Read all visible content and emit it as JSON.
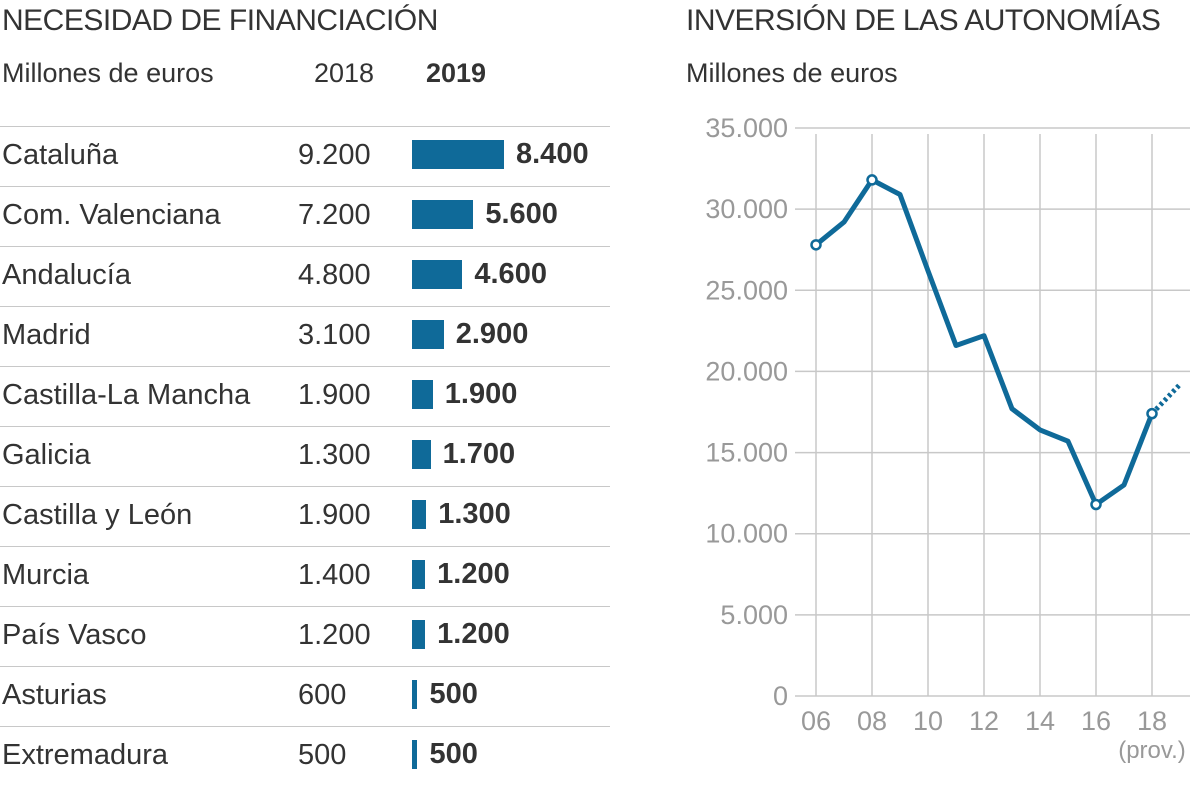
{
  "left": {
    "title": "NECESIDAD DE FINANCIACIÓN",
    "subtitle": "Millones de euros",
    "col_2018": "2018",
    "col_2019": "2019"
  },
  "right": {
    "title": "INVERSIÓN DE LAS AUTONOMÍAS",
    "subtitle": "Millones de euros"
  },
  "chart_data": [
    {
      "type": "bar",
      "title": "NECESIDAD DE FINANCIACIÓN",
      "subtitle": "Millones de euros",
      "orientation": "horizontal",
      "bar_color": "#0f6a99",
      "categories": [
        "Cataluña",
        "Com. Valenciana",
        "Andalucía",
        "Madrid",
        "Castilla-La Mancha",
        "Galicia",
        "Castilla y León",
        "Murcia",
        "País Vasco",
        "Asturias",
        "Extremadura"
      ],
      "series": [
        {
          "name": "2018",
          "values": [
            9200,
            7200,
            4800,
            3100,
            1900,
            1300,
            1900,
            1400,
            1200,
            600,
            500
          ],
          "labels": [
            "9.200",
            "7.200",
            "4.800",
            "3.100",
            "1.900",
            "1.300",
            "1.900",
            "1.400",
            "1.200",
            "600",
            "500"
          ]
        },
        {
          "name": "2019",
          "values": [
            8400,
            5600,
            4600,
            2900,
            1900,
            1700,
            1300,
            1200,
            1200,
            500,
            500
          ],
          "labels": [
            "8.400",
            "5.600",
            "4.600",
            "2.900",
            "1.900",
            "1.700",
            "1.300",
            "1.200",
            "1.200",
            "500",
            "500"
          ]
        }
      ]
    },
    {
      "type": "line",
      "title": "INVERSIÓN DE LAS AUTONOMÍAS",
      "subtitle": "Millones de euros",
      "line_color": "#0f6a99",
      "grid": true,
      "x": [
        2006,
        2007,
        2008,
        2009,
        2010,
        2011,
        2012,
        2013,
        2014,
        2015,
        2016,
        2017,
        2018
      ],
      "y": [
        27800,
        29200,
        31800,
        30900,
        26200,
        21600,
        22200,
        17700,
        16400,
        15700,
        11800,
        13000,
        17400
      ],
      "projection": {
        "x": [
          2018,
          2019
        ],
        "y": [
          17400,
          19200
        ],
        "style": "dashed"
      },
      "markers_at": [
        2006,
        2008,
        2016,
        2018
      ],
      "ylim": [
        0,
        35000
      ],
      "xlim": [
        2006,
        2019
      ],
      "yticks": [
        0,
        5000,
        10000,
        15000,
        20000,
        25000,
        30000,
        35000
      ],
      "ytick_labels": [
        "0",
        "5.000",
        "10.000",
        "15.000",
        "20.000",
        "25.000",
        "30.000",
        "35.000"
      ],
      "xticks": [
        2006,
        2008,
        2010,
        2012,
        2014,
        2016,
        2018
      ],
      "xtick_labels": [
        "06",
        "08",
        "10",
        "12",
        "14",
        "16",
        "18"
      ],
      "x_note": "(prov.)"
    }
  ]
}
